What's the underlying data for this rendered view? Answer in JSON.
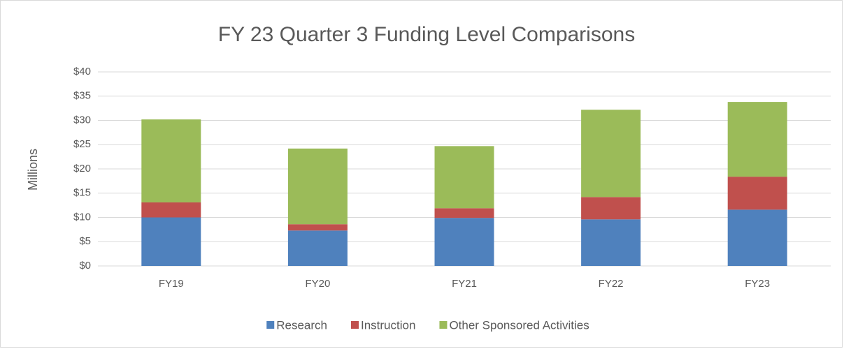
{
  "chart_data": {
    "type": "stacked_bar",
    "title": "FY 23 Quarter 3 Funding Level Comparisons",
    "y_label": "Millions",
    "categories": [
      "FY19",
      "FY20",
      "FY21",
      "FY22",
      "FY23"
    ],
    "series": [
      {
        "name": "Research",
        "color": "#4f81bd",
        "values": [
          10.0,
          7.3,
          9.9,
          9.6,
          11.6
        ]
      },
      {
        "name": "Instruction",
        "color": "#c0504d",
        "values": [
          3.1,
          1.3,
          2.0,
          4.6,
          6.8
        ]
      },
      {
        "name": "Other Sponsored Activities",
        "color": "#9bbb59",
        "values": [
          17.1,
          15.6,
          12.8,
          18.0,
          15.4
        ]
      }
    ],
    "ylim": [
      0,
      40
    ],
    "yticks": [
      {
        "value": 0,
        "label": "$0"
      },
      {
        "value": 5,
        "label": "$5"
      },
      {
        "value": 10,
        "label": "$10"
      },
      {
        "value": 15,
        "label": "$15"
      },
      {
        "value": 20,
        "label": "$20"
      },
      {
        "value": 25,
        "label": "$25"
      },
      {
        "value": 30,
        "label": "$30"
      },
      {
        "value": 35,
        "label": "$35"
      },
      {
        "value": 40,
        "label": "$40"
      }
    ],
    "grid": true,
    "legend": "bottom"
  }
}
